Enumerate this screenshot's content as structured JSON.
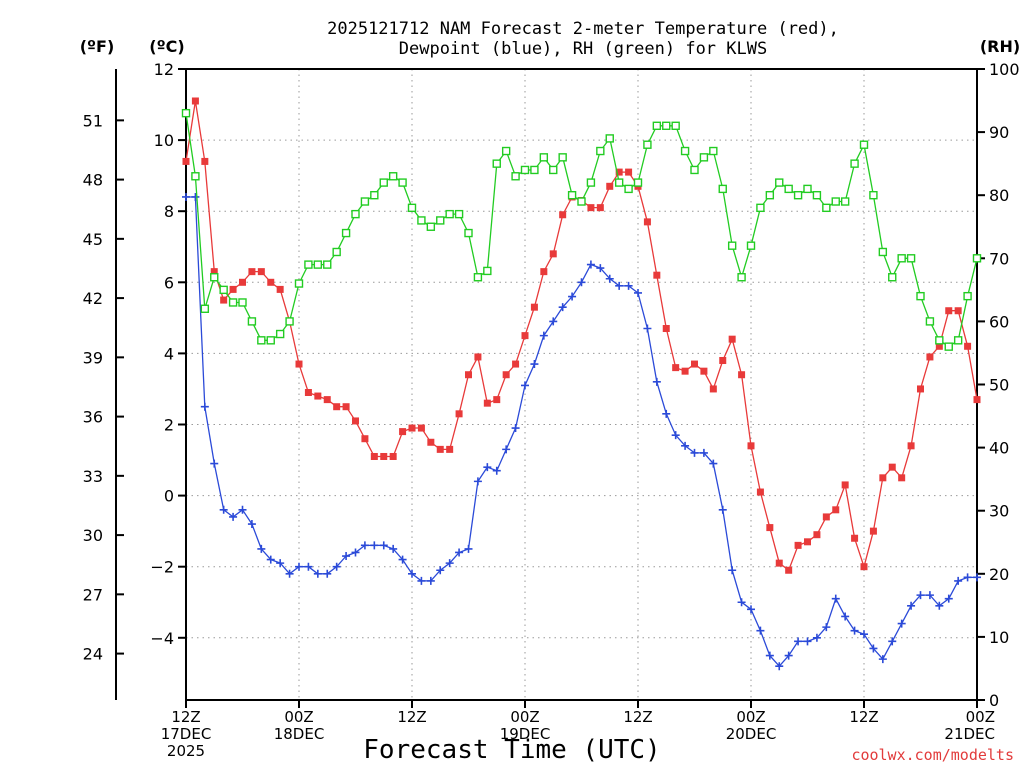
{
  "chart_data": {
    "type": "line",
    "title_line1": "2025121712 NAM Forecast 2-meter Temperature (red),",
    "title_line2": "Dewpoint (blue), RH (green) for KLWS",
    "unit_labels": {
      "fahrenheit": "(ºF)",
      "celsius": "(ºC)",
      "rh": "(RH)"
    },
    "xlabel": "Forecast Time (UTC)",
    "credit": "coolwx.com/modelts",
    "x_range_hours": [
      0,
      84
    ],
    "ylim_celsius": [
      -5.75,
      12
    ],
    "ylim_rh": [
      0,
      100
    ],
    "celsius_ticks": [
      12,
      10,
      8,
      6,
      4,
      2,
      0,
      -2,
      -4
    ],
    "fahrenheit_ticks": [
      51,
      48,
      45,
      42,
      39,
      36,
      33,
      30,
      27,
      24
    ],
    "rh_ticks": [
      100,
      90,
      80,
      70,
      60,
      50,
      40,
      30,
      20,
      10,
      0
    ],
    "x_ticks": [
      {
        "hour": 0,
        "lines": [
          "12Z",
          "17DEC",
          "2025"
        ]
      },
      {
        "hour": 12,
        "lines": [
          "00Z",
          "18DEC"
        ]
      },
      {
        "hour": 24,
        "lines": [
          "12Z"
        ]
      },
      {
        "hour": 36,
        "lines": [
          "00Z",
          "19DEC"
        ]
      },
      {
        "hour": 48,
        "lines": [
          "12Z"
        ]
      },
      {
        "hour": 60,
        "lines": [
          "00Z",
          "20DEC"
        ]
      },
      {
        "hour": 72,
        "lines": [
          "12Z"
        ]
      },
      {
        "hour": 84,
        "lines": [
          "00Z",
          "21DEC"
        ]
      }
    ],
    "series": [
      {
        "name": "Temperature",
        "unit": "C",
        "color": "#e83a3a",
        "marker": "filled-square",
        "x": [
          0,
          1,
          2,
          3,
          4,
          5,
          6,
          7,
          8,
          9,
          10,
          11,
          12,
          13,
          14,
          15,
          16,
          17,
          18,
          19,
          20,
          21,
          22,
          23,
          24,
          25,
          26,
          27,
          28,
          29,
          30,
          31,
          32,
          33,
          34,
          35,
          36,
          37,
          38,
          39,
          40,
          41,
          42,
          43,
          44,
          45,
          46,
          47,
          48,
          49,
          50,
          51,
          52,
          53,
          54,
          55,
          56,
          57,
          58,
          59,
          60,
          61,
          62,
          63,
          64,
          65,
          66,
          67,
          68,
          69,
          70,
          71,
          72,
          73,
          74,
          75,
          76,
          77,
          78,
          79,
          80,
          81,
          82,
          83,
          84
        ],
        "values": [
          9.4,
          11.1,
          9.4,
          6.3,
          5.5,
          5.8,
          6.0,
          6.3,
          6.3,
          6.0,
          5.8,
          4.9,
          3.7,
          2.9,
          2.8,
          2.7,
          2.5,
          2.5,
          2.1,
          1.6,
          1.1,
          1.1,
          1.1,
          1.8,
          1.9,
          1.9,
          1.5,
          1.3,
          1.3,
          2.3,
          3.4,
          3.9,
          2.6,
          2.7,
          3.4,
          3.7,
          4.5,
          5.3,
          6.3,
          6.8,
          7.9,
          8.4,
          8.3,
          8.1,
          8.1,
          8.7,
          9.1,
          9.1,
          8.7,
          7.7,
          6.2,
          4.7,
          3.6,
          3.5,
          3.7,
          3.5,
          3.0,
          3.8,
          4.4,
          3.4,
          1.4,
          0.1,
          -0.9,
          -1.9,
          -2.1,
          -1.4,
          -1.3,
          -1.1,
          -0.6,
          -0.4,
          0.3,
          -1.2,
          -2.0,
          -1.0,
          0.5,
          0.8,
          0.5,
          1.4,
          3.0,
          3.9,
          4.2,
          5.2,
          5.2,
          4.2,
          2.7
        ]
      },
      {
        "name": "Dewpoint",
        "unit": "C",
        "color": "#2b4ad8",
        "marker": "plus",
        "x": [
          0,
          1,
          2,
          3,
          4,
          5,
          6,
          7,
          8,
          9,
          10,
          11,
          12,
          13,
          14,
          15,
          16,
          17,
          18,
          19,
          20,
          21,
          22,
          23,
          24,
          25,
          26,
          27,
          28,
          29,
          30,
          31,
          32,
          33,
          34,
          35,
          36,
          37,
          38,
          39,
          40,
          41,
          42,
          43,
          44,
          45,
          46,
          47,
          48,
          49,
          50,
          51,
          52,
          53,
          54,
          55,
          56,
          57,
          58,
          59,
          60,
          61,
          62,
          63,
          64,
          65,
          66,
          67,
          68,
          69,
          70,
          71,
          72,
          73,
          74,
          75,
          76,
          77,
          78,
          79,
          80,
          81,
          82,
          83,
          84
        ],
        "values": [
          8.4,
          8.4,
          2.5,
          0.9,
          -0.4,
          -0.6,
          -0.4,
          -0.8,
          -1.5,
          -1.8,
          -1.9,
          -2.2,
          -2.0,
          -2.0,
          -2.2,
          -2.2,
          -2.0,
          -1.7,
          -1.6,
          -1.4,
          -1.4,
          -1.4,
          -1.5,
          -1.8,
          -2.2,
          -2.4,
          -2.4,
          -2.1,
          -1.9,
          -1.6,
          -1.5,
          0.4,
          0.8,
          0.7,
          1.3,
          1.9,
          3.1,
          3.7,
          4.5,
          4.9,
          5.3,
          5.6,
          6.0,
          6.5,
          6.4,
          6.1,
          5.9,
          5.9,
          5.7,
          4.7,
          3.2,
          2.3,
          1.7,
          1.4,
          1.2,
          1.2,
          0.9,
          -0.4,
          -2.1,
          -3.0,
          -3.2,
          -3.8,
          -4.5,
          -4.8,
          -4.5,
          -4.1,
          -4.1,
          -4.0,
          -3.7,
          -2.9,
          -3.4,
          -3.8,
          -3.9,
          -4.3,
          -4.6,
          -4.1,
          -3.6,
          -3.1,
          -2.8,
          -2.8,
          -3.1,
          -2.9,
          -2.4,
          -2.3,
          -2.3
        ]
      },
      {
        "name": "RH",
        "unit": "%",
        "color": "#22cc22",
        "marker": "open-square",
        "x": [
          0,
          1,
          2,
          3,
          4,
          5,
          6,
          7,
          8,
          9,
          10,
          11,
          12,
          13,
          14,
          15,
          16,
          17,
          18,
          19,
          20,
          21,
          22,
          23,
          24,
          25,
          26,
          27,
          28,
          29,
          30,
          31,
          32,
          33,
          34,
          35,
          36,
          37,
          38,
          39,
          40,
          41,
          42,
          43,
          44,
          45,
          46,
          47,
          48,
          49,
          50,
          51,
          52,
          53,
          54,
          55,
          56,
          57,
          58,
          59,
          60,
          61,
          62,
          63,
          64,
          65,
          66,
          67,
          68,
          69,
          70,
          71,
          72,
          73,
          74,
          75,
          76,
          77,
          78,
          79,
          80,
          81,
          82,
          83,
          84
        ],
        "values": [
          93,
          83,
          62,
          67,
          65,
          63,
          63,
          60,
          57,
          57,
          58,
          60,
          66,
          69,
          69,
          69,
          71,
          74,
          77,
          79,
          80,
          82,
          83,
          82,
          78,
          76,
          75,
          76,
          77,
          77,
          74,
          67,
          68,
          85,
          87,
          83,
          84,
          84,
          86,
          84,
          86,
          80,
          79,
          82,
          87,
          89,
          82,
          81,
          82,
          88,
          91,
          91,
          91,
          87,
          84,
          86,
          87,
          81,
          72,
          67,
          72,
          78,
          80,
          82,
          81,
          80,
          81,
          80,
          78,
          79,
          79,
          85,
          88,
          80,
          71,
          67,
          70,
          70,
          64,
          60,
          57,
          56,
          57,
          64,
          70
        ]
      }
    ]
  }
}
